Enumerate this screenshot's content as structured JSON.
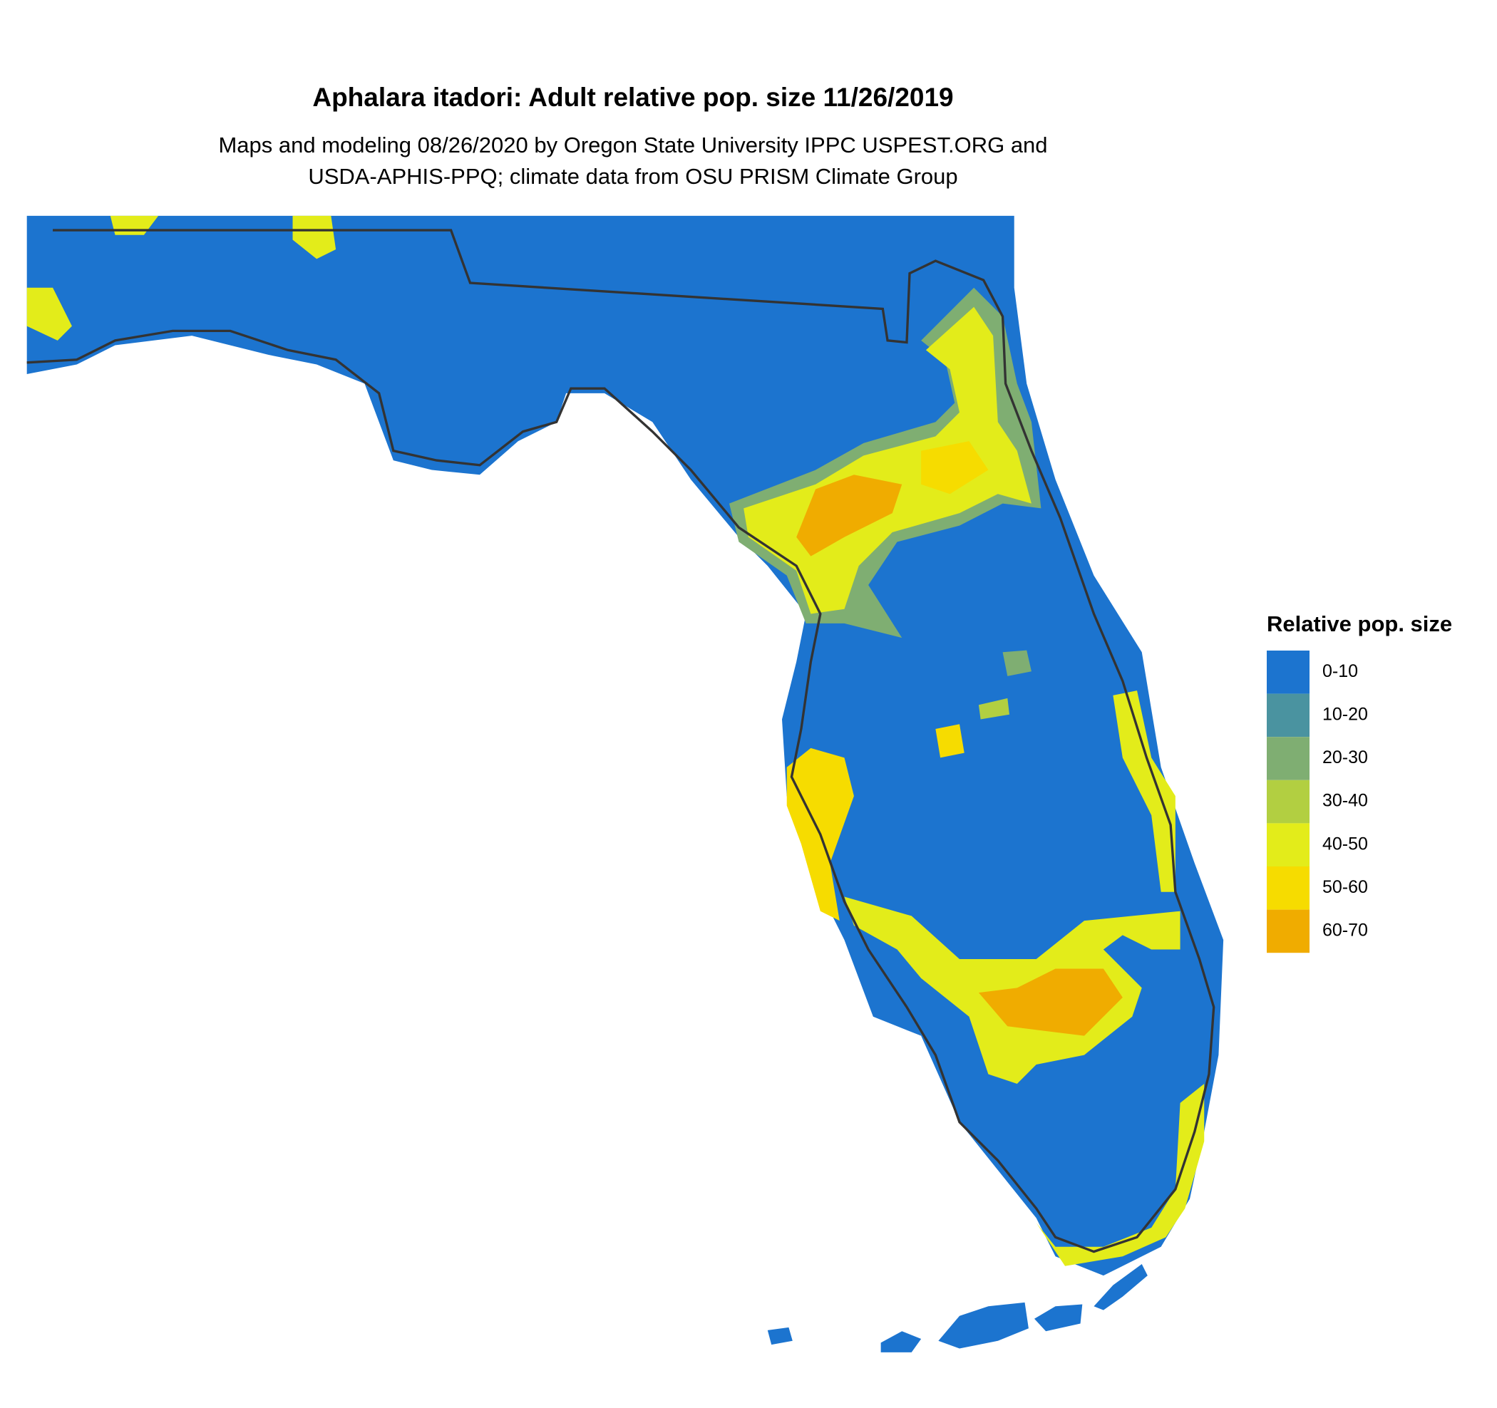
{
  "title": "Aphalara itadori: Adult relative pop. size 11/26/2019",
  "subtitle": [
    "Maps and modeling 08/26/2020 by Oregon State University IPPC USPEST.ORG and",
    "USDA-APHIS-PPQ; climate data from OSU PRISM Climate Group"
  ],
  "legend": {
    "title": "Relative pop. size",
    "items": [
      {
        "label": "0-10",
        "color": "#1c74cf"
      },
      {
        "label": "10-20",
        "color": "#4a93a0"
      },
      {
        "label": "20-30",
        "color": "#7fae72"
      },
      {
        "label": "30-40",
        "color": "#b2cf41"
      },
      {
        "label": "40-50",
        "color": "#e3ec1a"
      },
      {
        "label": "50-60",
        "color": "#f6dc00"
      },
      {
        "label": "60-70",
        "color": "#f0ac00"
      }
    ]
  }
}
